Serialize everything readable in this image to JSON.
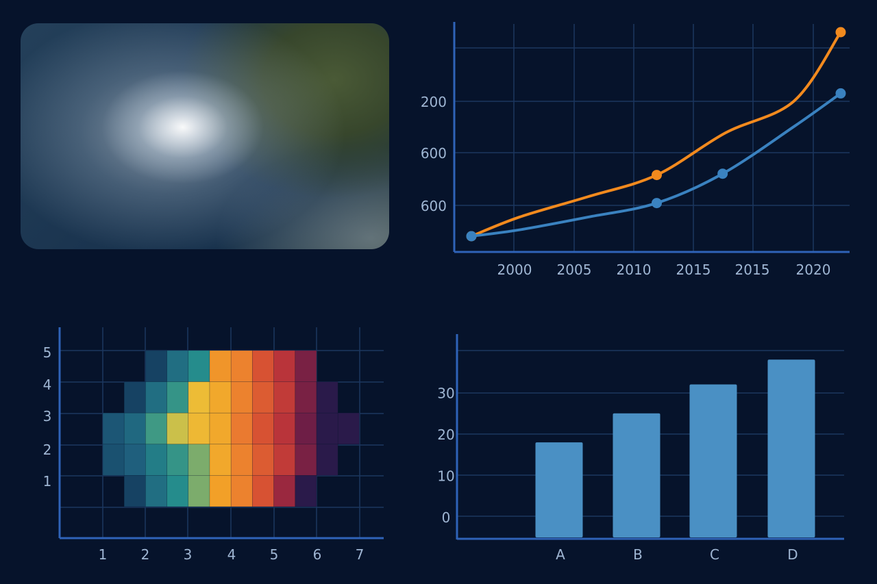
{
  "colors": {
    "background": "#06132b",
    "grid": "#1c3760",
    "axis": "#2f63b8",
    "tick_text": "#9fb6d3",
    "line_orange": "#f28a1e",
    "line_blue": "#3a82c0",
    "bar": "#4a90c4"
  },
  "satellite_image": {
    "subject": "hurricane-satellite-image"
  },
  "chart_data": [
    {
      "type": "line",
      "title": "",
      "xlabel": "",
      "ylabel": "",
      "x_tick_labels": [
        "2000",
        "2005",
        "2010",
        "2015",
        "2015",
        "2020"
      ],
      "y_tick_labels": [
        "200",
        "600",
        "600"
      ],
      "grid": true,
      "series": [
        {
          "color": "#f28a1e",
          "points": [
            [
              1996.5,
              100
            ],
            [
              2000,
              175
            ],
            [
              2005,
              255
            ],
            [
              2010,
              340
            ],
            [
              2015,
              505
            ],
            [
              2020,
              630
            ],
            [
              2023.4,
              900
            ]
          ],
          "markers": [
            [
              1996.5,
              100
            ],
            [
              2010,
              340
            ],
            [
              2023.4,
              900
            ]
          ]
        },
        {
          "color": "#3a82c0",
          "points": [
            [
              1996.5,
              100
            ],
            [
              2000,
              125
            ],
            [
              2005,
              175
            ],
            [
              2010,
              230
            ],
            [
              2014.8,
              345
            ],
            [
              2020,
              530
            ],
            [
              2023.4,
              660
            ]
          ],
          "markers": [
            [
              1996.5,
              100
            ],
            [
              2010,
              230
            ],
            [
              2014.8,
              345
            ],
            [
              2023.4,
              660
            ]
          ]
        }
      ]
    },
    {
      "type": "heatmap",
      "title": "",
      "xlabel": "",
      "ylabel": "",
      "x_tick_labels": [
        "1",
        "2",
        "3",
        "4",
        "5",
        "6",
        "7"
      ],
      "y_tick_labels": [
        "1",
        "2",
        "3",
        "4",
        "5"
      ],
      "grid": true,
      "rows_top_to_bottom": [
        [
          null,
          null,
          0.05,
          0.2,
          0.3,
          0.65,
          0.7,
          0.8,
          0.88,
          0.95,
          null,
          null
        ],
        [
          null,
          0.05,
          0.2,
          0.35,
          0.55,
          0.6,
          0.7,
          0.78,
          0.86,
          0.95,
          1.0,
          null
        ],
        [
          0.12,
          0.18,
          0.38,
          0.5,
          0.56,
          0.6,
          0.72,
          0.8,
          0.88,
          0.96,
          1.0,
          1.0
        ],
        [
          0.1,
          0.15,
          0.25,
          0.35,
          0.45,
          0.6,
          0.7,
          0.78,
          0.86,
          0.95,
          1.0,
          null
        ],
        [
          null,
          0.05,
          0.2,
          0.3,
          0.45,
          0.62,
          0.7,
          0.8,
          0.92,
          1.0,
          null,
          null
        ]
      ]
    },
    {
      "type": "bar",
      "title": "",
      "xlabel": "",
      "ylabel": "",
      "categories": [
        "A",
        "B",
        "C",
        "D"
      ],
      "values": [
        18,
        25,
        32,
        38
      ],
      "y_tick_labels": [
        "0",
        "10",
        "20",
        "30"
      ],
      "ylim": [
        -5,
        45
      ],
      "grid": true
    }
  ]
}
